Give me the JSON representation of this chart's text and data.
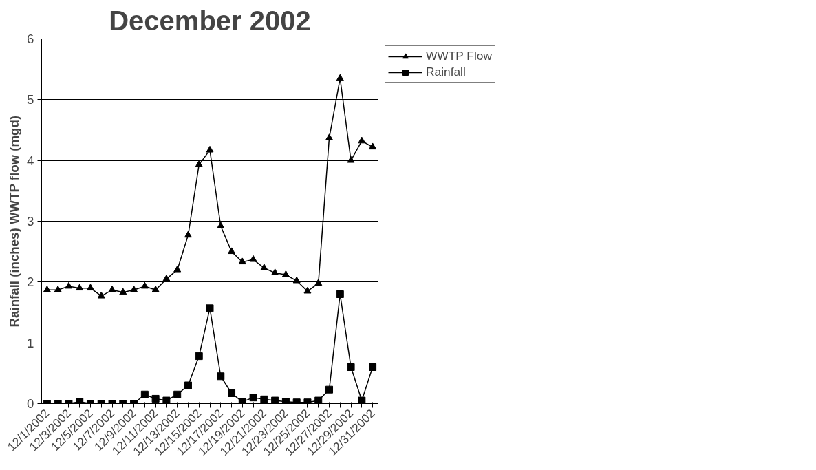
{
  "chart_data": {
    "type": "line",
    "title": "December 2002",
    "ylabel": "Rainfall (inches) WWTP flow (mgd)",
    "categories": [
      "12/1/2002",
      null,
      "12/3/2002",
      null,
      "12/5/2002",
      null,
      "12/7/2002",
      null,
      "12/9/2002",
      null,
      "12/11/2002",
      null,
      "12/13/2002",
      null,
      "12/15/2002",
      null,
      "12/17/2002",
      null,
      "12/19/2002",
      null,
      "12/21/2002",
      null,
      "12/23/2002",
      null,
      "12/25/2002",
      null,
      "12/27/2002",
      null,
      "12/29/2002",
      null,
      "12/31/2002"
    ],
    "series": [
      {
        "name": "WWTP Flow",
        "color": "#000000",
        "marker": "triangle",
        "values": [
          1.87,
          1.87,
          1.93,
          1.9,
          1.9,
          1.77,
          1.87,
          1.83,
          1.87,
          1.93,
          1.87,
          2.05,
          2.2,
          2.77,
          3.93,
          4.17,
          2.92,
          2.5,
          2.33,
          2.37,
          2.23,
          2.15,
          2.12,
          2.02,
          1.85,
          1.98,
          4.37,
          5.35,
          4.0,
          4.32,
          4.22
        ]
      },
      {
        "name": "Rainfall",
        "color": "#000000",
        "marker": "square",
        "values": [
          0,
          0,
          0,
          0.03,
          0,
          0,
          0,
          0,
          0,
          0.15,
          0.08,
          0.05,
          0.15,
          0.3,
          0.78,
          1.57,
          0.45,
          0.17,
          0.03,
          0.1,
          0.07,
          0.05,
          0.03,
          0.02,
          0.02,
          0.05,
          0.23,
          1.8,
          0.6,
          0.05,
          0.6
        ]
      }
    ],
    "ylim": [
      0,
      6
    ],
    "yticks": [
      0,
      1,
      2,
      3,
      4,
      5,
      6
    ],
    "grid": "y",
    "legend": "top right",
    "line_style": "solid"
  }
}
